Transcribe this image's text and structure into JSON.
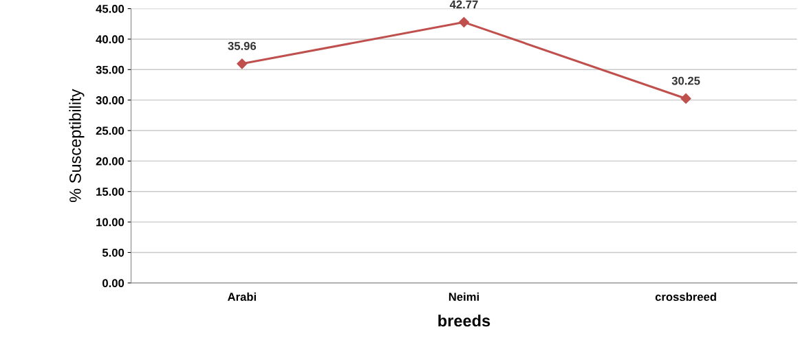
{
  "chart_data": {
    "type": "line",
    "xlabel": "breeds",
    "ylabel": "% Susceptibility",
    "categories": [
      "Arabi",
      "Neimi",
      "crossbreed"
    ],
    "series": [
      {
        "color": "#c0504d",
        "values": [
          35.96,
          42.77,
          30.25
        ]
      }
    ],
    "value_labels": [
      "35.96",
      "42.77",
      "30.25"
    ],
    "ylim": [
      0,
      45
    ],
    "yticks": [
      {
        "value": 0,
        "label": "0.00"
      },
      {
        "value": 5,
        "label": "5.00"
      },
      {
        "value": 10,
        "label": "10.00"
      },
      {
        "value": 15,
        "label": "15.00"
      },
      {
        "value": 20,
        "label": "20.00"
      },
      {
        "value": 25,
        "label": "25.00"
      },
      {
        "value": 30,
        "label": "30.00"
      },
      {
        "value": 35,
        "label": "35.00"
      },
      {
        "value": 40,
        "label": "40.00"
      },
      {
        "value": 45,
        "label": "45.00"
      }
    ],
    "grid": "y",
    "marker": "diamond",
    "line_style": "solid",
    "legend": false
  }
}
